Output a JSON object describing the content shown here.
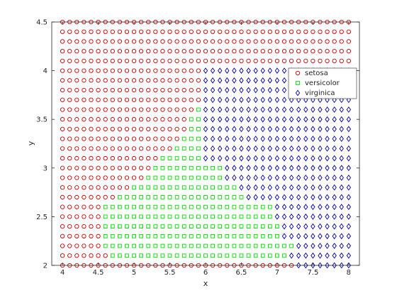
{
  "chart_data": {
    "type": "scatter",
    "title": "",
    "xlabel": "x",
    "ylabel": "y",
    "xlim": [
      3.85,
      8.15
    ],
    "ylim": [
      2,
      4.5
    ],
    "xticks": [
      4,
      4.5,
      5,
      5.5,
      6,
      6.5,
      7,
      7.5,
      8
    ],
    "yticks": [
      2,
      2.5,
      3,
      3.5,
      4,
      4.5
    ],
    "grid": false,
    "legend_position": "top-right",
    "grid_points": {
      "x_start": 4,
      "x_end": 8,
      "x_step": 0.1,
      "y_start": 2,
      "y_end": 4.5,
      "y_step": 0.1
    },
    "series": [
      {
        "name": "setosa",
        "marker": "circle",
        "color": "#cc0000",
        "description": "points not in other regions"
      },
      {
        "name": "versicolor",
        "marker": "square",
        "color": "#00dd00",
        "region": [
          {
            "y": 2.1,
            "xmin": 4.7,
            "xmax": 7.1
          },
          {
            "y": 2.2,
            "xmin": 4.6,
            "xmax": 7.2
          },
          {
            "y": 2.3,
            "xmin": 4.6,
            "xmax": 7.0
          },
          {
            "y": 2.4,
            "xmin": 4.6,
            "xmax": 7.0
          },
          {
            "y": 2.5,
            "xmin": 4.6,
            "xmax": 6.9
          },
          {
            "y": 2.6,
            "xmin": 4.6,
            "xmax": 6.9
          },
          {
            "y": 2.7,
            "xmin": 4.8,
            "xmax": 6.5
          },
          {
            "y": 2.8,
            "xmin": 5.0,
            "xmax": 6.4
          },
          {
            "y": 2.9,
            "xmin": 5.2,
            "xmax": 6.2
          },
          {
            "y": 3.0,
            "xmin": 5.3,
            "xmax": 6.2
          },
          {
            "y": 3.1,
            "xmin": 5.4,
            "xmax": 5.9
          },
          {
            "y": 3.2,
            "xmin": 5.6,
            "xmax": 5.9
          },
          {
            "y": 3.3,
            "xmin": 5.7,
            "xmax": 5.9
          },
          {
            "y": 3.4,
            "xmin": 5.8,
            "xmax": 5.9
          },
          {
            "y": 3.5,
            "xmin": 5.8,
            "xmax": 5.9
          },
          {
            "y": 3.6,
            "xmin": 5.9,
            "xmax": 5.9
          }
        ]
      },
      {
        "name": "virginica",
        "marker": "diamond",
        "color": "#0000aa",
        "region": [
          {
            "y": 2.0,
            "xmin": 7.3,
            "xmax": 8.0
          },
          {
            "y": 2.1,
            "xmin": 7.2,
            "xmax": 8.0
          },
          {
            "y": 2.2,
            "xmin": 7.3,
            "xmax": 8.0
          },
          {
            "y": 2.3,
            "xmin": 7.1,
            "xmax": 8.0
          },
          {
            "y": 2.4,
            "xmin": 7.1,
            "xmax": 8.0
          },
          {
            "y": 2.5,
            "xmin": 7.0,
            "xmax": 8.0
          },
          {
            "y": 2.6,
            "xmin": 7.0,
            "xmax": 8.0
          },
          {
            "y": 2.7,
            "xmin": 6.6,
            "xmax": 8.0
          },
          {
            "y": 2.8,
            "xmin": 6.5,
            "xmax": 8.0
          },
          {
            "y": 2.9,
            "xmin": 6.3,
            "xmax": 8.0
          },
          {
            "y": 3.0,
            "xmin": 6.3,
            "xmax": 8.0
          },
          {
            "y": 3.1,
            "xmin": 6.0,
            "xmax": 8.0
          },
          {
            "y": 3.2,
            "xmin": 6.0,
            "xmax": 8.0
          },
          {
            "y": 3.3,
            "xmin": 6.0,
            "xmax": 8.0
          },
          {
            "y": 3.4,
            "xmin": 6.0,
            "xmax": 8.0
          },
          {
            "y": 3.5,
            "xmin": 6.0,
            "xmax": 8.0
          },
          {
            "y": 3.6,
            "xmin": 6.0,
            "xmax": 8.0
          },
          {
            "y": 3.7,
            "xmin": 6.0,
            "xmax": 8.0
          },
          {
            "y": 3.8,
            "xmin": 6.0,
            "xmax": 8.0
          },
          {
            "y": 3.9,
            "xmin": 6.0,
            "xmax": 8.0
          },
          {
            "y": 4.0,
            "xmin": 6.0,
            "xmax": 8.0
          }
        ]
      }
    ]
  }
}
